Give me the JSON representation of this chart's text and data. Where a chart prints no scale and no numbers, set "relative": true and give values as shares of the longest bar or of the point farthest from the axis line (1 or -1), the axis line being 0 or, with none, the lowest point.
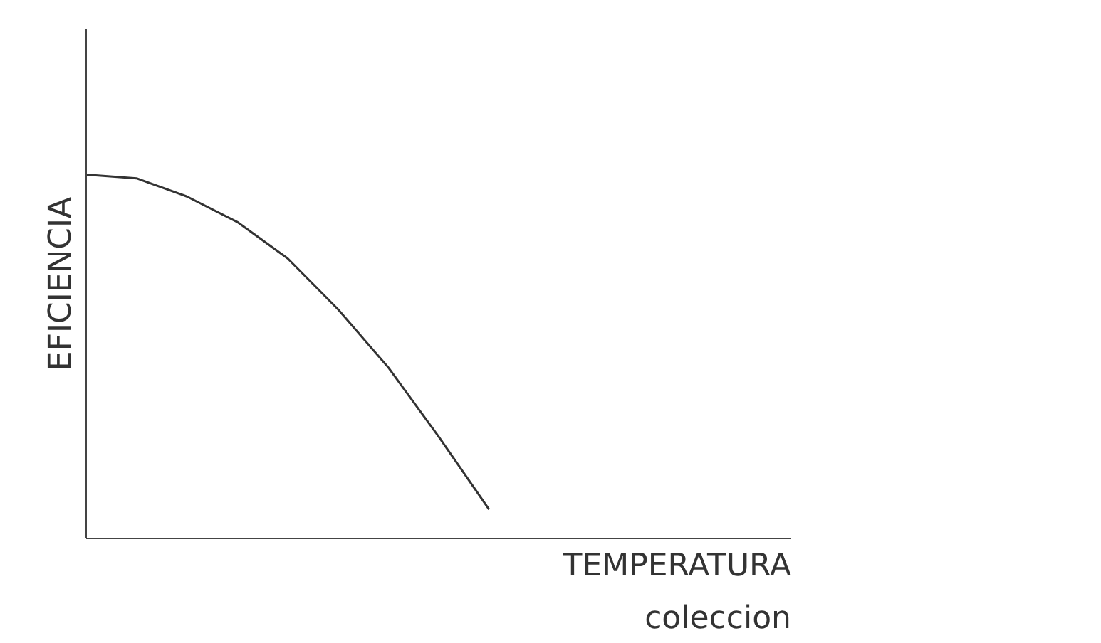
{
  "chart_data": {
    "type": "line",
    "relative": true,
    "xlabel": "TEMPERATURA",
    "ylabel": "EFICIENCIA",
    "annotations": [
      "coleccion"
    ],
    "categories": [
      null,
      null,
      null,
      null,
      null,
      null,
      null,
      null,
      null,
      null,
      null,
      null,
      null,
      null,
      null
    ],
    "series": [
      {
        "color": "#333333",
        "values": [
          1,
          0.99,
          0.94,
          0.87,
          0.77,
          0.63,
          0.47,
          0.28,
          0.08,
          null,
          null,
          null,
          null,
          null,
          null
        ]
      }
    ],
    "marker": "none",
    "line_style": "solid"
  }
}
